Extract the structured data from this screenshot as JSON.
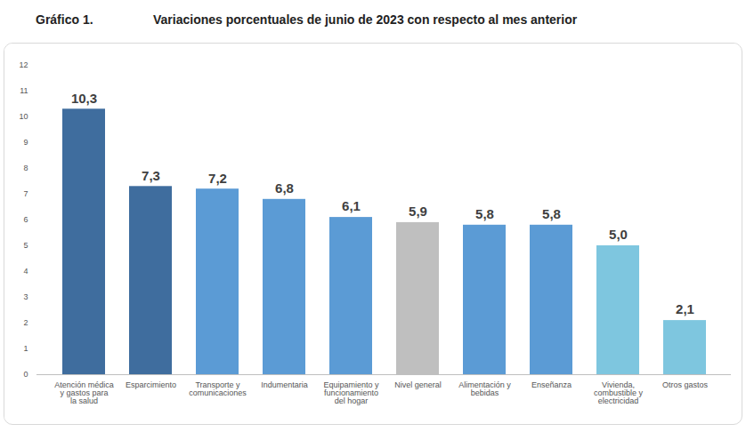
{
  "chart_data": {
    "type": "bar",
    "figure_number": "Gráfico 1.",
    "title": "Variaciones porcentuales de junio de 2023 con respecto al mes anterior",
    "categories": [
      "Atención médica y gastos para la salud",
      "Esparcimiento",
      "Transporte y comunicaciones",
      "Indumentaria",
      "Equipamiento y funcionamiento del hogar",
      "Nivel general",
      "Alimentación y bebidas",
      "Enseñanza",
      "Vivienda, combustible y electricidad",
      "Otros gastos"
    ],
    "values": [
      10.3,
      7.3,
      7.2,
      6.8,
      6.1,
      5.9,
      5.8,
      5.8,
      5.0,
      2.1
    ],
    "value_labels": [
      "10,3",
      "7,3",
      "7,2",
      "6,8",
      "6,1",
      "5,9",
      "5,8",
      "5,8",
      "5,0",
      "2,1"
    ],
    "colors": [
      "#3f6d9e",
      "#3f6d9e",
      "#5b9bd5",
      "#5b9bd5",
      "#5b9bd5",
      "#bfbfbf",
      "#5b9bd5",
      "#5b9bd5",
      "#7ec6df",
      "#7ec6df"
    ],
    "ylim": [
      0,
      12
    ],
    "yticks": [
      0,
      1,
      2,
      3,
      4,
      5,
      6,
      7,
      8,
      9,
      10,
      11,
      12
    ],
    "grid": false,
    "data_labels": true
  }
}
